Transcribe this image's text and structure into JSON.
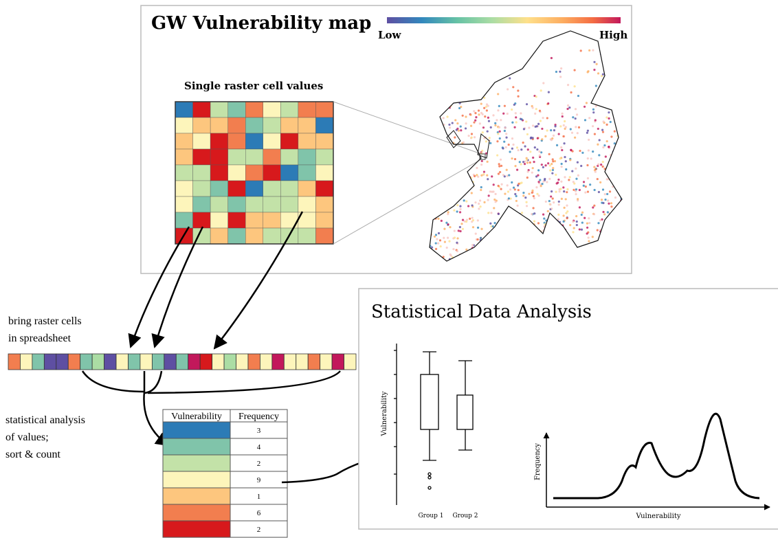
{
  "map": {
    "title": "GW Vulnerability map",
    "legend": {
      "low": "Low",
      "high": "High"
    },
    "inset_title": "Single raster cell values"
  },
  "spreadsheet": {
    "label": [
      "bring raster cells",
      "in spreadsheet"
    ]
  },
  "sort": {
    "label": [
      "statistical analysis",
      "of values;",
      "sort & count"
    ]
  },
  "table": {
    "header": [
      "Vulnerability",
      "Frequency"
    ],
    "rows": [
      {
        "color": "#2c7bb6",
        "frequency": 3
      },
      {
        "color": "#80c4aa",
        "frequency": 4
      },
      {
        "color": "#c3e2a8",
        "frequency": 2
      },
      {
        "color": "#fdf5bb",
        "frequency": 9
      },
      {
        "color": "#fdc67e",
        "frequency": 1
      },
      {
        "color": "#f27e4f",
        "frequency": 6
      },
      {
        "color": "#d7191c",
        "frequency": 2
      }
    ]
  },
  "analysis": {
    "title": "Statistical Data Analysis",
    "boxplot": {
      "y_label": "Vulnerability",
      "categories": [
        "Group 1",
        "Group 2"
      ]
    },
    "density": {
      "y_label": "Frequency",
      "x_label": "Vulnerability"
    }
  }
}
